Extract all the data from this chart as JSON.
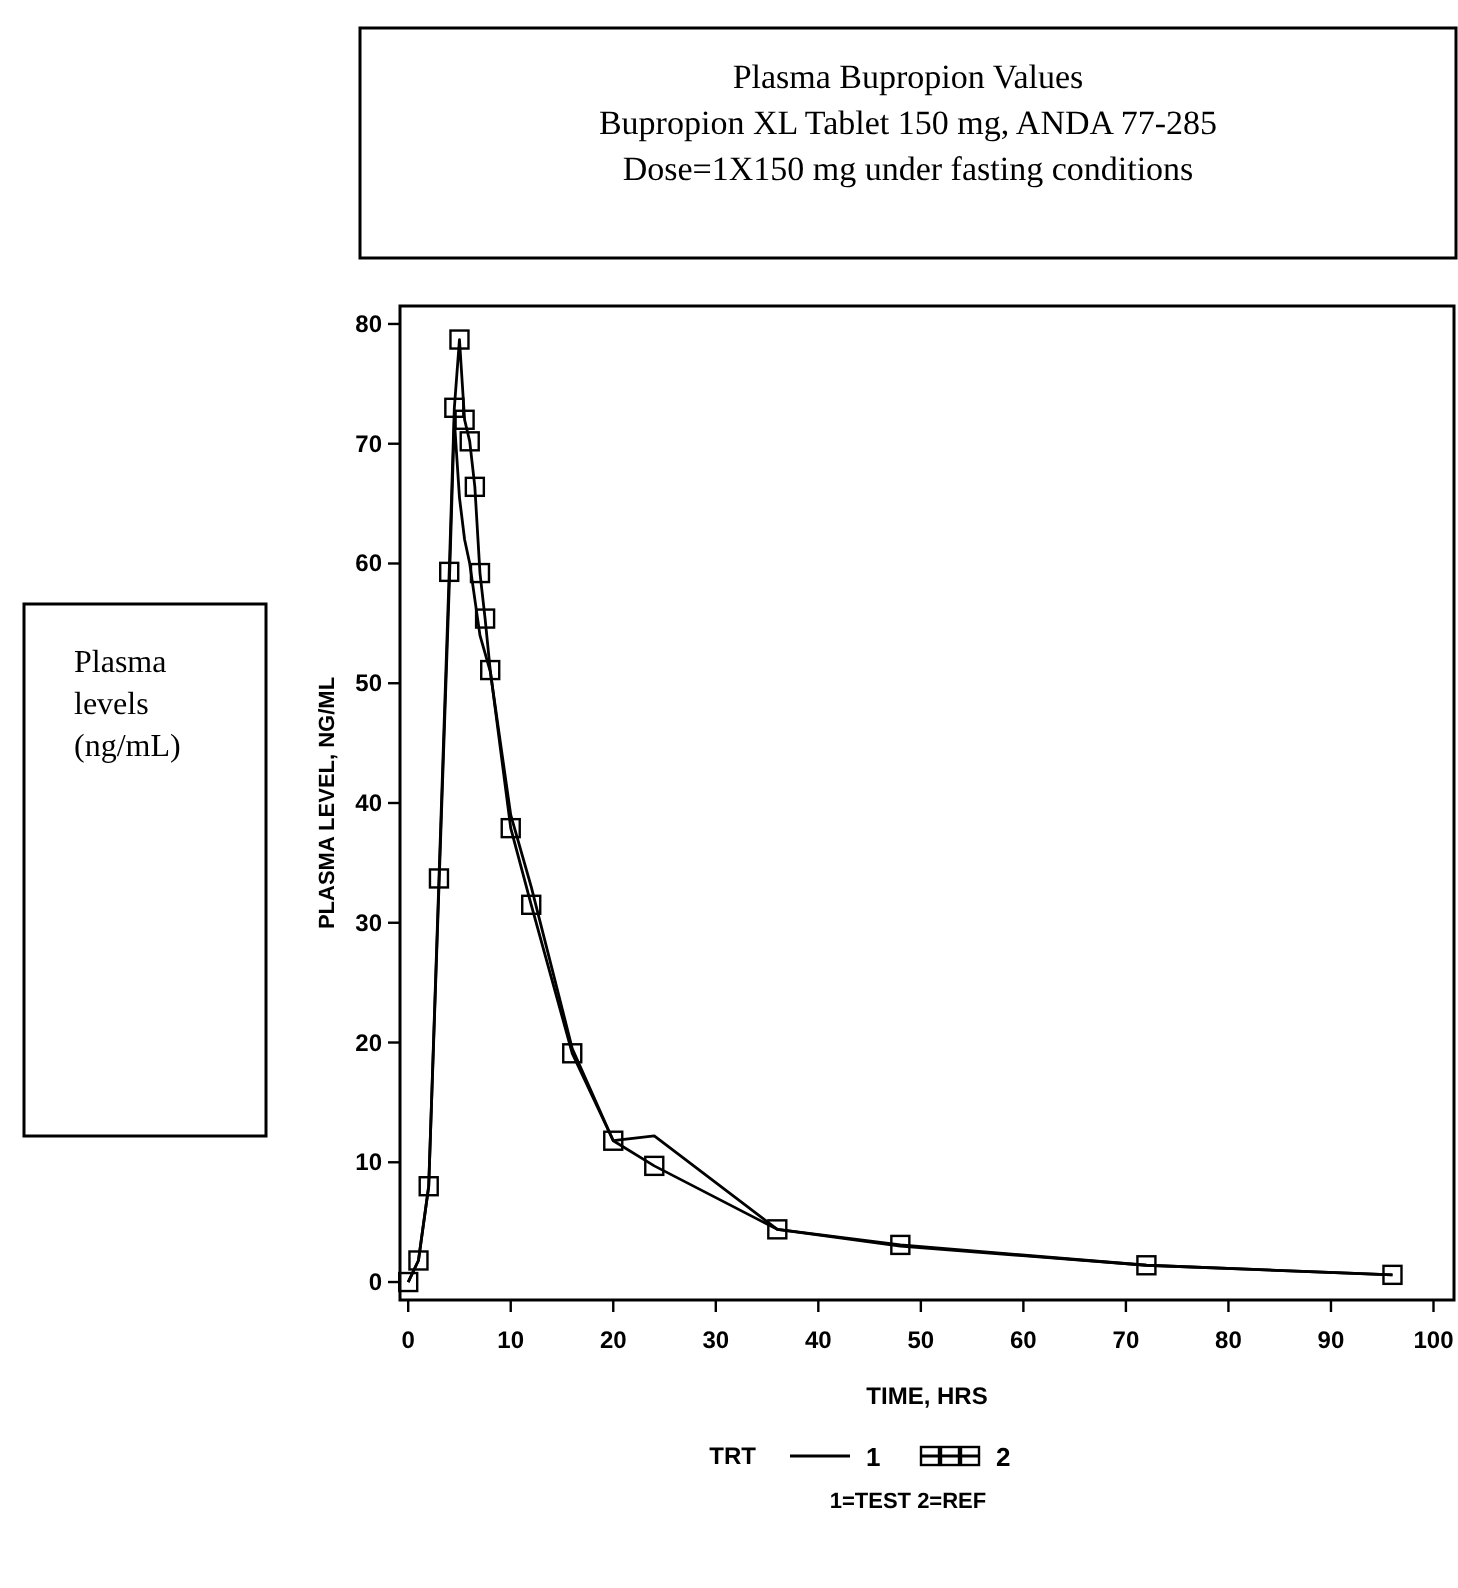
{
  "chart_data": {
    "type": "line",
    "title": "Plasma Bupropion Values",
    "subtitle": "Bupropion XL Tablet 150 mg, ANDA 77-285\nDose=1X150 mg under fasting conditions",
    "xlabel": "TIME, HRS",
    "ylabel": "PLASMA LEVEL, NG/ML",
    "legend_title": "TRT",
    "legend": "bottom",
    "x": [
      0,
      1,
      2,
      3,
      4,
      4.5,
      5,
      5.5,
      6,
      6.5,
      7,
      7.5,
      8,
      10,
      12,
      16,
      20,
      24,
      36,
      48,
      72,
      96
    ],
    "series": [
      {
        "name": "1",
        "color": "#000000",
        "marker": "none",
        "values": [
          0,
          1.8,
          8,
          33,
          58,
          72,
          65.5,
          62,
          60,
          57,
          54,
          52.5,
          51,
          39,
          33,
          19.5,
          11.8,
          12.2,
          4.4,
          3,
          1.4,
          0.6
        ]
      },
      {
        "name": "2",
        "color": "#000000",
        "marker": "square",
        "values": [
          0,
          1.8,
          8,
          33.7,
          59.3,
          73,
          78.7,
          72,
          70.2,
          66.4,
          59.2,
          55.4,
          51.1,
          37.9,
          31.5,
          19.1,
          11.8,
          9.7,
          4.4,
          3.1,
          1.4,
          0.6
        ]
      }
    ],
    "xlim": [
      -0.8,
      102
    ],
    "ylim": [
      -1.5,
      81.5
    ],
    "xticks": [
      0,
      10,
      20,
      30,
      40,
      50,
      60,
      70,
      80,
      90,
      100
    ],
    "yticks": [
      0,
      10,
      20,
      30,
      40,
      50,
      60,
      70,
      80
    ],
    "grid": false,
    "annotations": [
      "Plasma levels (ng/mL)",
      "1=TEST   2=REF"
    ]
  }
}
